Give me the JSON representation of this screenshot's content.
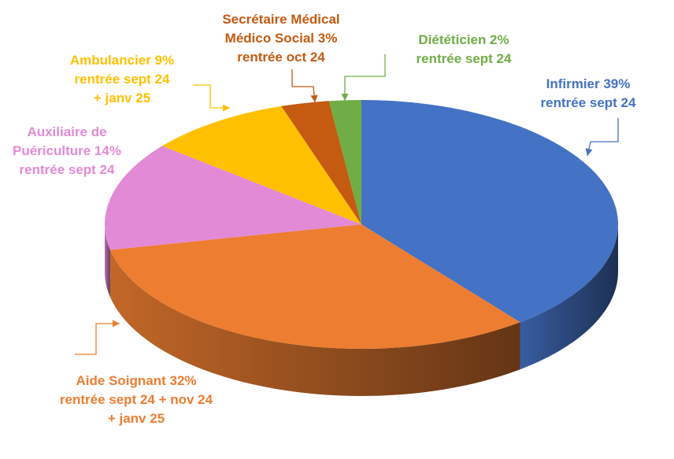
{
  "chart_data": {
    "type": "pie",
    "title": "",
    "style": "3d",
    "slices": [
      {
        "name": "Infirmier",
        "value": 39,
        "color": "#4472C4",
        "label_lines": [
          "Infirmier 39%",
          "rentrée sept 24"
        ]
      },
      {
        "name": "Aide Soignant",
        "value": 32,
        "color": "#ED7D31",
        "label_lines": [
          "Aide Soignant 32%",
          "rentrée sept 24 + nov 24",
          "+ janv 25"
        ]
      },
      {
        "name": "Auxiliaire de Puériculture",
        "value": 14,
        "color": "#E38AD6",
        "label_lines": [
          "Auxiliaire de",
          "Puériculture 14%",
          "rentrée sept 24"
        ]
      },
      {
        "name": "Ambulancier",
        "value": 9,
        "color": "#FFC000",
        "label_lines": [
          "Ambulancier 9%",
          "rentrée sept 24",
          "+ janv 25"
        ]
      },
      {
        "name": "Secrétaire Médical Médico Social",
        "value": 3,
        "color": "#C55A11",
        "label_lines": [
          "Secrétaire Médical",
          "Médico Social 3%",
          "rentrée oct 24"
        ]
      },
      {
        "name": "Diététicien",
        "value": 2,
        "color": "#70AD47",
        "label_lines": [
          "Diététicien 2%",
          "rentrée sept 24"
        ]
      }
    ]
  }
}
